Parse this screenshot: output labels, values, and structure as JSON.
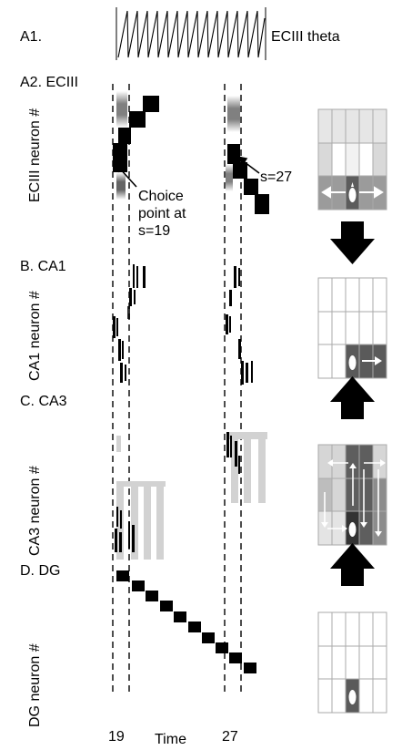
{
  "labels": {
    "a1": "A1.",
    "theta": "ECIII theta",
    "a2": "A2. ECIII",
    "ecIIIAxis": "ECIII neuron #",
    "choice1": "Choice",
    "choice2": "point at",
    "choice3": "s=19",
    "s27": "s=27",
    "b": "B. CA1",
    "ca1Axis": "CA1 neuron #",
    "c": "C. CA3",
    "ca3Axis": "CA3 neuron #",
    "d": "D. DG",
    "dgAxis": "DG  neuron #",
    "t19": "19",
    "time": "Time",
    "t27": "27"
  },
  "icons": [
    "arrow-down-icon",
    "arrow-up-icon",
    "maze-icon",
    "rat-icon"
  ],
  "colors": {
    "black": "#000000",
    "darkGray": "#555555",
    "midGray": "#9a9a9a",
    "lightGray": "#c8c8c8"
  }
}
